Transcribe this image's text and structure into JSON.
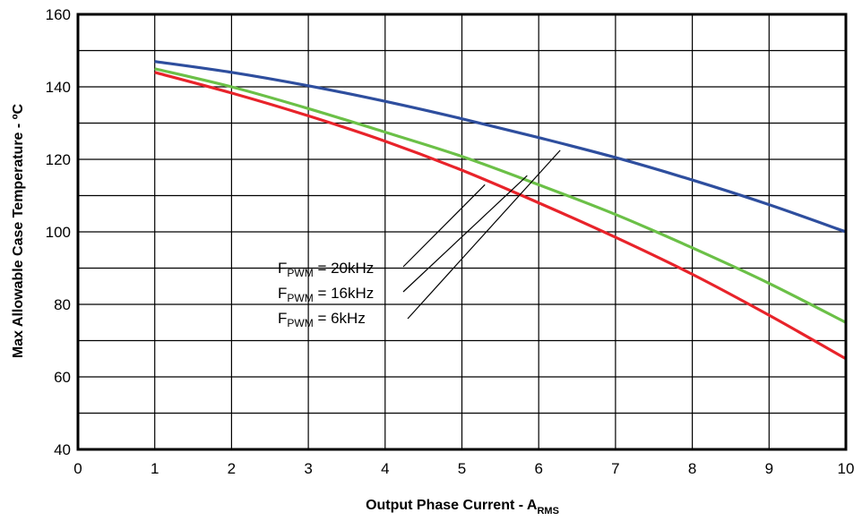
{
  "chart_data": {
    "type": "line",
    "xlabel": "Output Phase Current - A",
    "xlabel_sub": "RMS",
    "ylabel": "Max Allowable Case Temperature - ºC",
    "xlim": [
      0,
      10
    ],
    "ylim": [
      40,
      160
    ],
    "x_ticks": [
      "0",
      "1",
      "2",
      "3",
      "4",
      "5",
      "6",
      "7",
      "8",
      "9",
      "10"
    ],
    "y_ticks": [
      "40",
      "60",
      "80",
      "100",
      "120",
      "140",
      "160"
    ],
    "grid": true,
    "series": [
      {
        "name": "FPWM = 6kHz",
        "color": "#2E4E9E",
        "x": [
          1,
          2,
          3,
          4,
          5,
          6,
          7,
          8,
          9,
          10
        ],
        "y": [
          147,
          144,
          140.3,
          136,
          131.2,
          126,
          120.5,
          114.3,
          107.5,
          100
        ]
      },
      {
        "name": "FPWM = 16kHz",
        "color": "#6BC047",
        "x": [
          1,
          2,
          3,
          4,
          5,
          6,
          7,
          8,
          9,
          10
        ],
        "y": [
          145,
          140,
          134,
          127.5,
          120.8,
          113,
          104.8,
          95.6,
          85.8,
          75
        ]
      },
      {
        "name": "FPWM = 20kHz",
        "color": "#E8232A",
        "x": [
          1,
          2,
          3,
          4,
          5,
          6,
          7,
          8,
          9,
          10
        ],
        "y": [
          144,
          138.3,
          132,
          125,
          117,
          108,
          98.5,
          88.3,
          77,
          65
        ]
      }
    ],
    "annotations": [
      {
        "main": "F",
        "sub": "PWM",
        "rest": " = 20kHz",
        "target": {
          "x": 5.3,
          "y": 113
        }
      },
      {
        "main": "F",
        "sub": "PWM",
        "rest": " = 16kHz",
        "target": {
          "x": 5.85,
          "y": 115.5
        }
      },
      {
        "main": "F",
        "sub": "PWM",
        "rest": " = 6kHz",
        "target": {
          "x": 6.28,
          "y": 122.5
        }
      }
    ]
  }
}
